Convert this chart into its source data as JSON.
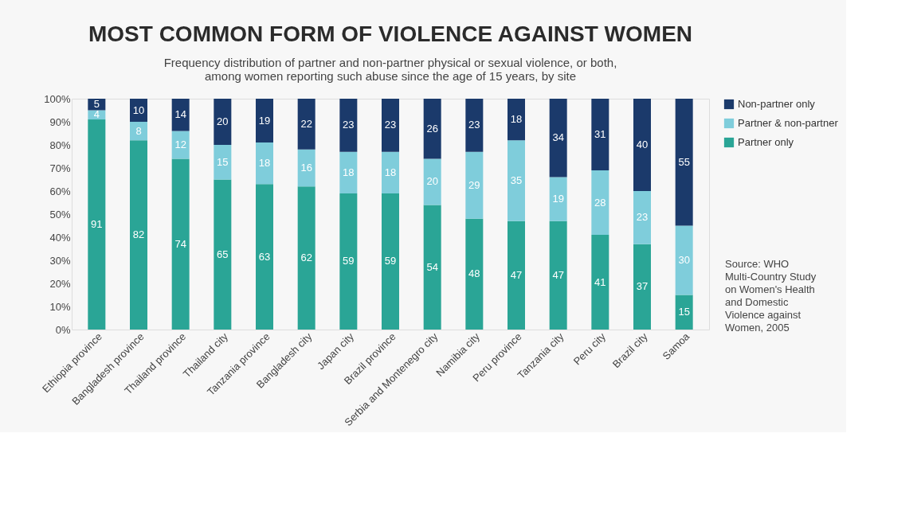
{
  "chart_data": {
    "type": "bar",
    "stacked": true,
    "title": "MOST COMMON FORM OF VIOLENCE AGAINST WOMEN",
    "subtitle": "Frequency distribution of partner and non-partner physical or sexual violence, or both,\namong women reporting such abuse since the age of 15 years, by site",
    "categories": [
      "Ethiopia province",
      "Bangladesh province",
      "Thailand province",
      "Thailand city",
      "Tanzania province",
      "Bangladesh city",
      "Japan city",
      "Brazil province",
      "Serbia and Montenegro city",
      "Namibia city",
      "Peru province",
      "Tanzania city",
      "Peru city",
      "Brazil city",
      "Samoa"
    ],
    "series": [
      {
        "name": "Partner only",
        "color": "#2aa596",
        "values": [
          91,
          82,
          74,
          65,
          63,
          62,
          59,
          59,
          54,
          48,
          47,
          47,
          41,
          37,
          15
        ]
      },
      {
        "name": "Partner & non-partner",
        "color": "#7fcddb",
        "values": [
          4,
          8,
          12,
          15,
          18,
          16,
          18,
          18,
          20,
          29,
          35,
          19,
          28,
          23,
          30
        ]
      },
      {
        "name": "Non-partner only",
        "color": "#1b3a6b",
        "values": [
          5,
          10,
          14,
          20,
          19,
          22,
          23,
          23,
          26,
          23,
          18,
          34,
          31,
          40,
          55
        ]
      }
    ],
    "ylim": [
      0,
      100
    ],
    "yticks": [
      {
        "value": 0,
        "label": "0%"
      },
      {
        "value": 10,
        "label": "10%"
      },
      {
        "value": 20,
        "label": "20%"
      },
      {
        "value": 30,
        "label": "30%"
      },
      {
        "value": 40,
        "label": "40%"
      },
      {
        "value": 50,
        "label": "50%"
      },
      {
        "value": 60,
        "label": "60%"
      },
      {
        "value": 70,
        "label": "70%"
      },
      {
        "value": 80,
        "label": "80%"
      },
      {
        "value": 90,
        "label": "90%"
      },
      {
        "value": 100,
        "label": "100%"
      }
    ],
    "data_labels": true,
    "grid": false,
    "legend": "top right",
    "annotations": [
      "Source: WHO Multi-Country Study on Women's Health and Domestic Violence against Women, 2005"
    ]
  }
}
